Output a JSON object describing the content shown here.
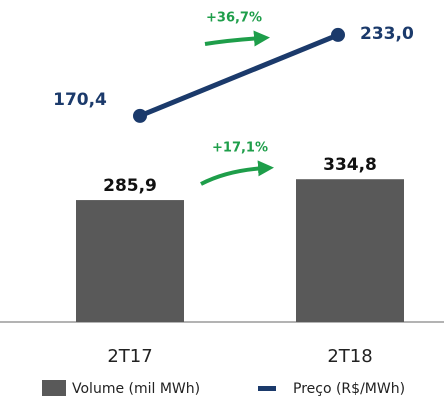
{
  "chart_data": {
    "type": "combo",
    "categories": [
      "2T17",
      "2T18"
    ],
    "series": [
      {
        "name": "Volume (mil MWh)",
        "type": "bar",
        "color": "#595959",
        "values": [
          285.9,
          334.8
        ],
        "value_labels": [
          "285,9",
          "334,8"
        ]
      },
      {
        "name": "Preço (R$/MWh)",
        "type": "line",
        "axis": "y2",
        "color": "#1b3a6b",
        "values": [
          170.4,
          233.0
        ],
        "value_labels": [
          "170,4",
          "233,0"
        ]
      }
    ],
    "annotations": [
      "+36,7%",
      "+17,1%"
    ],
    "ylim": [
      0,
      755
    ],
    "y2lim": [
      11,
      260
    ],
    "legend": "bottom"
  }
}
